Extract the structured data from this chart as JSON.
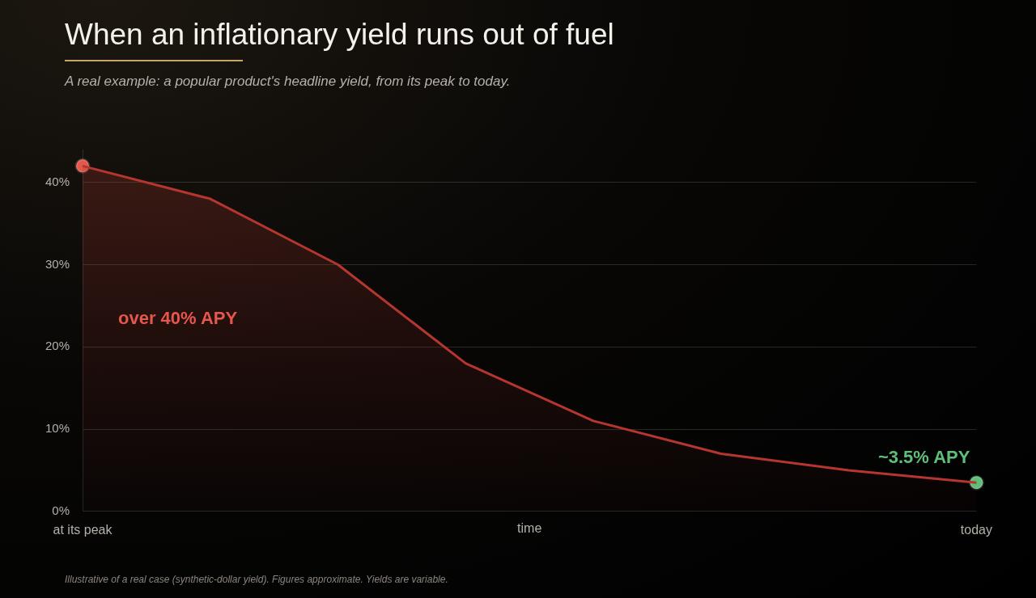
{
  "chart_data": {
    "type": "area",
    "title": "When an inflationary yield runs out of fuel",
    "subtitle": "A real example: a popular product's headline yield, from its peak to today.",
    "categories": [
      "at its peak",
      null,
      null,
      null,
      null,
      null,
      null,
      "today"
    ],
    "xlabel": "time",
    "ylim": [
      0,
      44
    ],
    "yticks": [
      {
        "value": 0,
        "label": "0%"
      },
      {
        "value": 10,
        "label": "10%"
      },
      {
        "value": 20,
        "label": "20%"
      },
      {
        "value": 30,
        "label": "30%"
      },
      {
        "value": 40,
        "label": "40%"
      }
    ],
    "grid": "y",
    "marker": "none",
    "line_style": "solid",
    "series": [
      {
        "color": "#b5362e",
        "values": [
          42,
          38,
          30,
          18,
          11,
          7,
          5,
          3.5
        ]
      },
      {
        "type": "scatter",
        "color": "#e5574a",
        "values": [
          42,
          null,
          null,
          null,
          null,
          null,
          null,
          null
        ],
        "marker": "circle"
      },
      {
        "type": "scatter",
        "color": "#5fbf7a",
        "values": [
          null,
          null,
          null,
          null,
          null,
          null,
          null,
          3.5
        ],
        "marker": "circle"
      }
    ],
    "annotations": [
      "over 40% APY",
      "~3.5% APY",
      "Illustrative of a real case (synthetic-dollar yield). Figures approximate. Yields are variable."
    ]
  }
}
